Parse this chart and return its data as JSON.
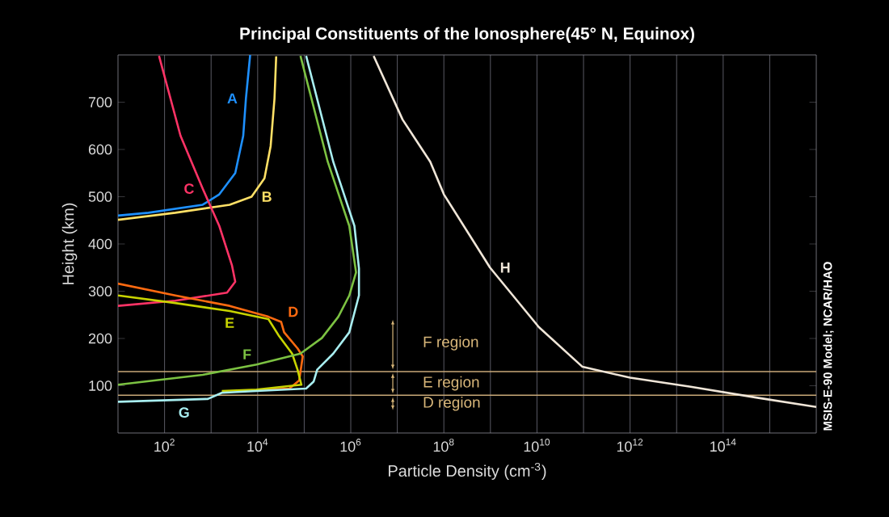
{
  "chart_data": {
    "type": "line",
    "title": "Principal Constituents of the Ionosphere(45° N, Equinox)",
    "xlabel": "Particle Density (cm$^{-3}$)",
    "ylabel": "Height (km)",
    "log": "x",
    "grid": "x",
    "xlim": [
      10,
      1e+16
    ],
    "ylim": [
      0,
      800
    ],
    "xticks": [
      {
        "value": 100,
        "label": "10$^{2}$"
      },
      {
        "value": 1000.0,
        "label": null
      },
      {
        "value": 10000.0,
        "label": "10$^{4}$"
      },
      {
        "value": 100000.0,
        "label": null
      },
      {
        "value": 1000000.0,
        "label": "10$^{6}$"
      },
      {
        "value": 10000000.0,
        "label": null
      },
      {
        "value": 100000000.0,
        "label": "10$^{8}$"
      },
      {
        "value": 1000000000.0,
        "label": null
      },
      {
        "value": 10000000000.0,
        "label": "10$^{10}$"
      },
      {
        "value": 100000000000.0,
        "label": null
      },
      {
        "value": 1000000000000.0,
        "label": "10$^{12}$"
      },
      {
        "value": 10000000000000.0,
        "label": null
      },
      {
        "value": 100000000000000.0,
        "label": "10$^{14}$"
      },
      {
        "value": 1000000000000000.0,
        "label": null
      }
    ],
    "yticks": [
      100,
      200,
      300,
      400,
      500,
      600,
      700
    ],
    "series": [
      {
        "name": "A",
        "color": "#1e90ff",
        "x": [
          10,
          45,
          660,
          1500,
          3300,
          4900,
          5600,
          6900
        ],
        "values": [
          460,
          466,
          483,
          505,
          550,
          629,
          708,
          800
        ]
      },
      {
        "name": "B",
        "color": "#ffe066",
        "x": [
          10,
          170,
          2500,
          7400,
          14000,
          19000,
          23000,
          25000
        ],
        "values": [
          451,
          466,
          483,
          500,
          539,
          607,
          708,
          797
        ]
      },
      {
        "name": "C",
        "color": "#ff3366",
        "x": [
          76,
          220,
          660,
          1500,
          2800,
          3300,
          2200,
          170,
          10
        ],
        "values": [
          798,
          629,
          517,
          438,
          355,
          320,
          297,
          280,
          269
        ]
      },
      {
        "name": "D",
        "color": "#ff6a10",
        "x": [
          10,
          170,
          2500,
          17000,
          32000,
          37000,
          72000,
          93000,
          78000,
          48000,
          9500
        ],
        "values": [
          316,
          291,
          269,
          246,
          235,
          213,
          179,
          162,
          111,
          94,
          91
        ]
      },
      {
        "name": "E",
        "color": "#c8d400",
        "x": [
          10,
          170,
          2500,
          17000,
          28000,
          55000,
          72000,
          87000,
          9500,
          1700
        ],
        "values": [
          291,
          275,
          258,
          241,
          207,
          168,
          134,
          102,
          92,
          89
        ]
      },
      {
        "name": "F",
        "color": "#7cc242",
        "x": [
          10,
          660,
          9500,
          83000,
          240000,
          540000,
          930000,
          1300000,
          930000,
          320000,
          83000
        ],
        "values": [
          102,
          123,
          145,
          168,
          201,
          246,
          291,
          340,
          438,
          574,
          798
        ]
      },
      {
        "name": "G",
        "color": "#a8eef0",
        "x": [
          10,
          850,
          1700,
          9500,
          110000,
          160000,
          190000,
          420000,
          930000,
          1500000,
          1500000,
          1200000,
          420000,
          110000
        ],
        "values": [
          66,
          72,
          85,
          89,
          94,
          109,
          134,
          168,
          213,
          291,
          348,
          438,
          574,
          798
        ]
      },
      {
        "name": "H",
        "color": "#f0e6d8",
        "x": [
          3100000,
          13000000,
          51000000,
          100000000,
          980000000,
          11000000000,
          95000000000,
          1000000000000,
          20000000000000,
          510000000000000,
          10000000000000000
        ],
        "values": [
          798,
          663,
          574,
          505,
          350,
          224,
          140,
          117,
          98,
          75,
          55
        ]
      }
    ],
    "ref_lines": [
      {
        "axis": "y",
        "value": 130,
        "color": "#c8a878"
      },
      {
        "axis": "y",
        "value": 80,
        "color": "#c8a878"
      }
    ],
    "annotations": [
      "F region",
      "E region",
      "D region",
      "MSIS-E-90 Model; NCAR/HAO"
    ]
  }
}
